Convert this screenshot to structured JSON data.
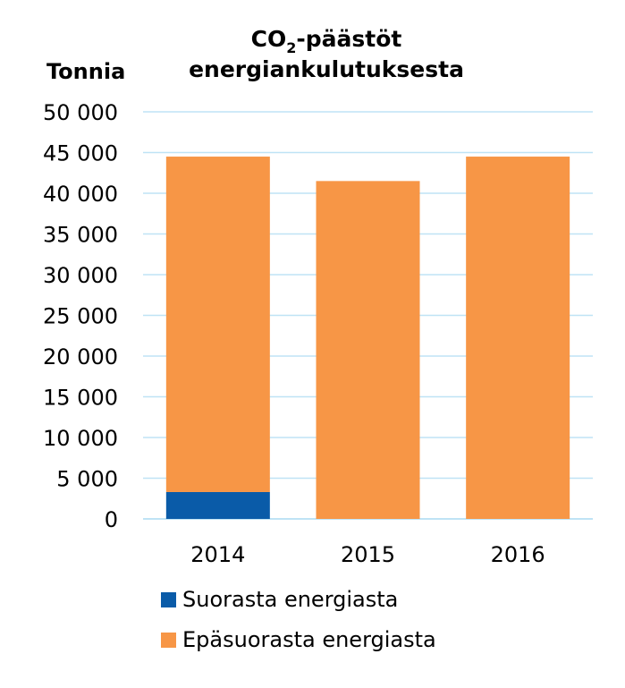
{
  "chart_data": {
    "type": "bar",
    "stacked": true,
    "title_line1_prefix": "CO",
    "title_line1_sub": "2",
    "title_line1_suffix": "-päästöt",
    "title_line2": "energiankulutuksesta",
    "ylabel": "Tonnia",
    "ylim": [
      0,
      50000
    ],
    "yticks": [
      0,
      5000,
      10000,
      15000,
      20000,
      25000,
      30000,
      35000,
      40000,
      45000,
      50000
    ],
    "ytick_labels": [
      "0",
      "5 000",
      "10 000",
      "15 000",
      "20 000",
      "25 000",
      "30 000",
      "35 000",
      "40 000",
      "45 000",
      "50 000"
    ],
    "grid": true,
    "legend_position": "bottom",
    "categories": [
      "2014",
      "2015",
      "2016"
    ],
    "series": [
      {
        "name": "Suorasta energiasta",
        "color": "#0a5ba8",
        "values": [
          3300,
          0,
          0
        ]
      },
      {
        "name": "Epäsuorasta energiasta",
        "color": "#f79646",
        "values": [
          41200,
          41500,
          44500
        ]
      }
    ]
  }
}
